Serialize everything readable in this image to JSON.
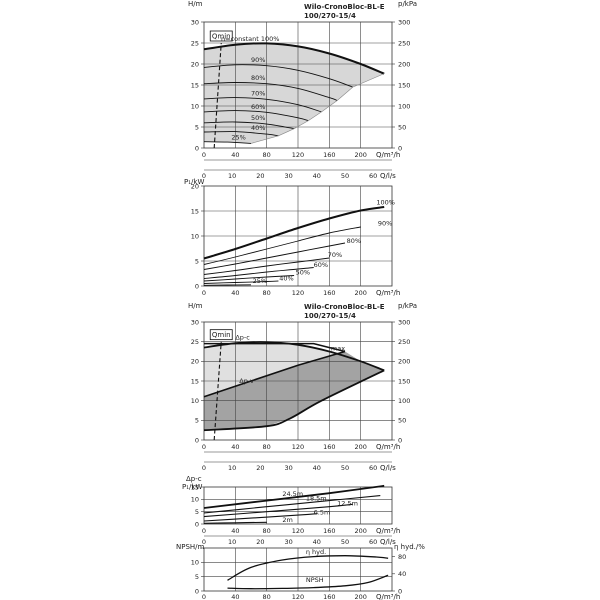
{
  "charts": {
    "qh_var": {
      "title": [
        "Wilo-CronoBloc-BL-E",
        "100/270-15/4"
      ],
      "y_left_label": "H/m",
      "y_right_label": "p/kPa",
      "x_q_label": "Q/m³/h",
      "x_l_label": "Q/l/s",
      "qmin_label": "Qmin",
      "y_left_ticks": [
        "0",
        "5",
        "10",
        "15",
        "20",
        "25",
        "30"
      ],
      "y_right_ticks": [
        "0",
        "50",
        "100",
        "150",
        "200",
        "250",
        "300"
      ],
      "x_q_ticks": [
        "0",
        "40",
        "80",
        "120",
        "160",
        "200"
      ],
      "x_l_ticks": [
        "0",
        "10",
        "20",
        "30",
        "40",
        "50",
        "60"
      ],
      "curve_labels": [
        "n=constant 100%",
        "90%",
        "80%",
        "70%",
        "60%",
        "50%",
        "40%",
        "25%"
      ]
    },
    "power": {
      "y_label": "P₁/kW",
      "y_ticks": [
        "0",
        "5",
        "10",
        "15",
        "20"
      ],
      "x_q_label": "Q/m³/h",
      "x_l_label": "Q/l/s",
      "x_q_ticks": [
        "0",
        "40",
        "80",
        "120",
        "160",
        "200"
      ],
      "x_l_ticks": [
        "0",
        "10",
        "20",
        "30",
        "40",
        "50",
        "60"
      ],
      "curve_labels": [
        "100%",
        "90%",
        "80%",
        "70%",
        "60%",
        "50%",
        "40%",
        "25%"
      ]
    },
    "qh_modes": {
      "title": [
        "Wilo-CronoBloc-BL-E",
        "100/270-15/4"
      ],
      "y_left_label": "H/m",
      "y_right_label": "p/kPa",
      "x_q_label": "Q/m³/h",
      "x_l_label": "Q/l/s",
      "qmin_label": "Qmin",
      "dp_c_label": "Δp-c",
      "dp_v_label": "Δp-v",
      "max_label": "max",
      "y_left_ticks": [
        "0",
        "5",
        "10",
        "15",
        "20",
        "25",
        "30"
      ],
      "y_right_ticks": [
        "0",
        "50",
        "100",
        "150",
        "200",
        "250",
        "300"
      ],
      "x_q_ticks": [
        "0",
        "40",
        "80",
        "120",
        "160",
        "200"
      ],
      "x_l_ticks": [
        "0",
        "10",
        "20",
        "30",
        "40",
        "50",
        "60"
      ]
    },
    "dpc_power": {
      "y_label_1": "Δp-c",
      "y_label_2": "P₁/kW",
      "y_ticks": [
        "0",
        "5",
        "10",
        "15"
      ],
      "x_q_label": "Q/m³/h",
      "x_l_label": "Q/l/s",
      "x_q_ticks": [
        "0",
        "40",
        "80",
        "120",
        "160",
        "200"
      ],
      "x_l_ticks": [
        "0",
        "10",
        "20",
        "30",
        "40",
        "50",
        "60"
      ],
      "curve_labels": [
        "24.5m",
        "18.5m",
        "12.5m",
        "6.5m",
        "2m"
      ]
    },
    "npsh": {
      "y_left_label": "NPSH/m",
      "y_right_label": "η hyd./%",
      "y_left_ticks": [
        "0",
        "5",
        "10"
      ],
      "y_right_ticks": [
        "0",
        "40",
        "80"
      ],
      "x_q_label": "Q/m³/h",
      "x_q_ticks": [
        "0",
        "40",
        "80",
        "120",
        "160",
        "200"
      ],
      "eff_label": "η hyd.",
      "npsh_label": "NPSH"
    }
  },
  "chart_data": [
    {
      "type": "line",
      "title": "Wilo-CronoBloc-BL-E 100/270-15/4",
      "xlabel": "Q/m³/h",
      "ylabel": "H/m",
      "y2label": "p/kPa",
      "xlim": [
        0,
        240
      ],
      "ylim": [
        0,
        30
      ],
      "y2lim": [
        0,
        300
      ],
      "grid": true,
      "series": [
        {
          "name": "n=constant 100%",
          "x": [
            0,
            40,
            80,
            120,
            160,
            200,
            230
          ],
          "y": [
            23.5,
            24.6,
            24.9,
            24.2,
            22.5,
            20.0,
            17.7
          ]
        },
        {
          "name": "90%",
          "x": [
            0,
            40,
            80,
            120,
            160,
            190
          ],
          "y": [
            19.2,
            19.8,
            19.6,
            18.5,
            16.5,
            14.5
          ]
        },
        {
          "name": "80%",
          "x": [
            0,
            40,
            80,
            120,
            160,
            170
          ],
          "y": [
            15.3,
            15.6,
            15.3,
            14.2,
            12.0,
            11.3
          ]
        },
        {
          "name": "70%",
          "x": [
            0,
            40,
            80,
            120,
            150
          ],
          "y": [
            11.7,
            12.0,
            11.6,
            10.3,
            8.6
          ]
        },
        {
          "name": "60%",
          "x": [
            0,
            40,
            80,
            120,
            133
          ],
          "y": [
            8.6,
            8.9,
            8.5,
            7.2,
            6.5
          ]
        },
        {
          "name": "50%",
          "x": [
            0,
            40,
            80,
            115
          ],
          "y": [
            6.0,
            6.2,
            5.7,
            4.6
          ]
        },
        {
          "name": "40%",
          "x": [
            0,
            40,
            80,
            95
          ],
          "y": [
            3.8,
            3.9,
            3.3,
            2.9
          ]
        },
        {
          "name": "25%",
          "x": [
            0,
            30,
            60
          ],
          "y": [
            1.5,
            1.4,
            1.1
          ]
        },
        {
          "name": "Qmin",
          "x": [
            13,
            22
          ],
          "y": [
            0,
            25
          ]
        }
      ]
    },
    {
      "type": "line",
      "xlabel": "Q/m³/h",
      "ylabel": "P₁/kW",
      "xlim": [
        0,
        240
      ],
      "ylim": [
        0,
        20
      ],
      "grid": true,
      "series": [
        {
          "name": "100%",
          "x": [
            0,
            40,
            80,
            120,
            160,
            200,
            230
          ],
          "y": [
            5.5,
            7.4,
            9.5,
            11.6,
            13.5,
            15.1,
            15.8
          ]
        },
        {
          "name": "90%",
          "x": [
            0,
            40,
            80,
            120,
            160,
            200
          ],
          "y": [
            4.3,
            5.8,
            7.4,
            9.0,
            10.6,
            11.8
          ]
        },
        {
          "name": "80%",
          "x": [
            0,
            40,
            80,
            120,
            160,
            180
          ],
          "y": [
            3.3,
            4.4,
            5.6,
            6.8,
            8.0,
            8.6
          ]
        },
        {
          "name": "70%",
          "x": [
            0,
            40,
            80,
            120,
            160
          ],
          "y": [
            2.3,
            3.1,
            4.0,
            4.8,
            5.6
          ]
        },
        {
          "name": "60%",
          "x": [
            0,
            40,
            80,
            120,
            140
          ],
          "y": [
            1.5,
            2.1,
            2.8,
            3.4,
            3.7
          ]
        },
        {
          "name": "50%",
          "x": [
            0,
            40,
            80,
            115
          ],
          "y": [
            1.0,
            1.4,
            1.8,
            2.1
          ]
        },
        {
          "name": "40%",
          "x": [
            0,
            40,
            80,
            95
          ],
          "y": [
            0.5,
            0.7,
            0.9,
            1.0
          ]
        },
        {
          "name": "25%",
          "x": [
            0,
            30,
            60
          ],
          "y": [
            0.15,
            0.2,
            0.25
          ]
        }
      ]
    },
    {
      "type": "area",
      "title": "Wilo-CronoBloc-BL-E 100/270-15/4",
      "xlabel": "Q/m³/h",
      "ylabel": "H/m",
      "y2label": "p/kPa",
      "xlim": [
        0,
        240
      ],
      "ylim": [
        0,
        30
      ],
      "y2lim": [
        0,
        300
      ],
      "grid": true,
      "series": [
        {
          "name": "max",
          "x": [
            0,
            40,
            80,
            120,
            160,
            200,
            230
          ],
          "y": [
            23.5,
            24.6,
            24.9,
            24.2,
            22.5,
            20.0,
            17.7
          ]
        },
        {
          "name": "Δp-c",
          "x": [
            0,
            140,
            180
          ],
          "y": [
            24.5,
            24.5,
            22.5
          ]
        },
        {
          "name": "Δp-v",
          "x": [
            0,
            60,
            120,
            180
          ],
          "y": [
            11,
            15,
            19,
            22.5
          ]
        },
        {
          "name": "min",
          "x": [
            0,
            80,
            110,
            150,
            230
          ],
          "y": [
            2.5,
            3.5,
            5.5,
            10,
            17.7
          ]
        },
        {
          "name": "Qmin",
          "x": [
            13,
            22
          ],
          "y": [
            0,
            25
          ]
        }
      ]
    },
    {
      "type": "line",
      "xlabel": "Q/m³/h",
      "ylabel": "P₁/kW",
      "xlim": [
        0,
        240
      ],
      "ylim": [
        0,
        15
      ],
      "grid": true,
      "series": [
        {
          "name": "24.5m",
          "x": [
            0,
            80,
            160,
            230
          ],
          "y": [
            6.5,
            9.5,
            12.5,
            15.5
          ]
        },
        {
          "name": "18.5m",
          "x": [
            0,
            80,
            160,
            225
          ],
          "y": [
            4.5,
            7.0,
            9.5,
            11.5
          ]
        },
        {
          "name": "12.5m",
          "x": [
            0,
            80,
            160,
            190
          ],
          "y": [
            3.0,
            5.0,
            7.0,
            8.0
          ]
        },
        {
          "name": "6.5m",
          "x": [
            0,
            60,
            120,
            145
          ],
          "y": [
            1.2,
            2.4,
            3.6,
            4.2
          ]
        },
        {
          "name": "2m",
          "x": [
            0,
            40,
            80
          ],
          "y": [
            0.3,
            0.5,
            0.7
          ]
        }
      ]
    },
    {
      "type": "line",
      "xlabel": "Q/m³/h",
      "ylabel": "NPSH/m",
      "y2label": "η hyd./%",
      "xlim": [
        0,
        240
      ],
      "ylim": [
        0,
        15
      ],
      "y2lim": [
        0,
        100
      ],
      "grid": true,
      "series": [
        {
          "name": "η hyd.",
          "axis": "right",
          "x": [
            30,
            60,
            100,
            140,
            180,
            220,
            235
          ],
          "y": [
            25,
            55,
            72,
            80,
            82,
            79,
            76
          ]
        },
        {
          "name": "NPSH",
          "axis": "left",
          "x": [
            30,
            60,
            100,
            140,
            180,
            210,
            235
          ],
          "y": [
            1.0,
            0.8,
            0.9,
            1.2,
            1.8,
            3.0,
            5.5
          ]
        }
      ]
    }
  ]
}
